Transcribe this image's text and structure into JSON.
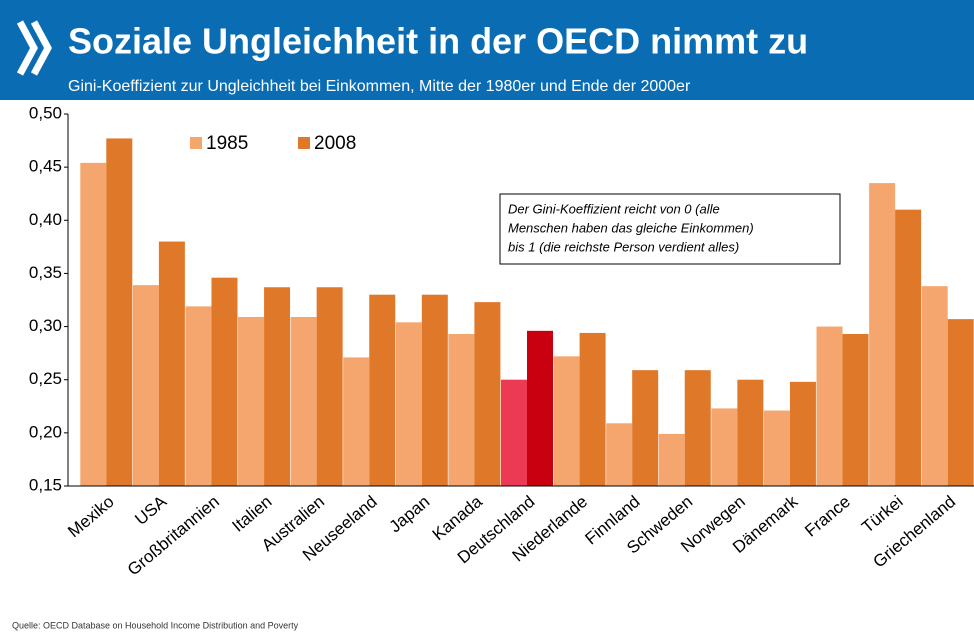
{
  "chart_data": {
    "type": "bar",
    "title": "Soziale Ungleichheit in der OECD nimmt zu",
    "subtitle": "Gini-Koeffizient zur Ungleichheit bei Einkommen, Mitte der 1980er und Ende der 2000er",
    "annotation": [
      "Der Gini-Koeffizient reicht von 0 (alle",
      "Menschen haben das gleiche Einkommen)",
      "bis 1 (die reichste Person verdient alles)"
    ],
    "source": "Quelle: OECD Database on Household Income Distribution and Poverty",
    "categories": [
      "Mexiko",
      "USA",
      "Großbritannien",
      "Italien",
      "Australien",
      "Neuseeland",
      "Japan",
      "Kanada",
      "Deutschland",
      "Niederlande",
      "Finnland",
      "Schweden",
      "Norwegen",
      "Dänemark",
      "France",
      "Türkei",
      "Griechenland"
    ],
    "series": [
      {
        "name": "1985",
        "color": "#f4a66e",
        "colors": [
          "#f4a66e",
          "#f4a66e",
          "#f4a66e",
          "#f4a66e",
          "#f4a66e",
          "#f4a66e",
          "#f4a66e",
          "#f4a66e",
          "#ec3a55",
          "#f4a66e",
          "#f4a66e",
          "#f4a66e",
          "#f4a66e",
          "#f4a66e",
          "#f4a66e",
          "#f4a66e",
          "#f4a66e"
        ],
        "values": [
          0.454,
          0.339,
          0.319,
          0.309,
          0.309,
          0.271,
          0.304,
          0.293,
          0.25,
          0.272,
          0.209,
          0.199,
          0.223,
          0.221,
          0.3,
          0.435,
          0.338
        ]
      },
      {
        "name": "2008",
        "color": "#e0782a",
        "colors": [
          "#e0782a",
          "#e0782a",
          "#e0782a",
          "#e0782a",
          "#e0782a",
          "#e0782a",
          "#e0782a",
          "#e0782a",
          "#c80010",
          "#e0782a",
          "#e0782a",
          "#e0782a",
          "#e0782a",
          "#e0782a",
          "#e0782a",
          "#e0782a",
          "#e0782a"
        ],
        "values": [
          0.477,
          0.38,
          0.346,
          0.337,
          0.337,
          0.33,
          0.33,
          0.323,
          0.296,
          0.294,
          0.259,
          0.259,
          0.25,
          0.248,
          0.293,
          0.41,
          0.307
        ]
      }
    ],
    "ylim": [
      0.15,
      0.5
    ],
    "yticks": [
      {
        "value": 0.15,
        "label": "0,15"
      },
      {
        "value": 0.2,
        "label": "0,20"
      },
      {
        "value": 0.25,
        "label": "0,25"
      },
      {
        "value": 0.3,
        "label": "0,30"
      },
      {
        "value": 0.35,
        "label": "0,35"
      },
      {
        "value": 0.4,
        "label": "0,40"
      },
      {
        "value": 0.45,
        "label": "0,45"
      },
      {
        "value": 0.5,
        "label": "0,50"
      }
    ],
    "grid": false
  }
}
